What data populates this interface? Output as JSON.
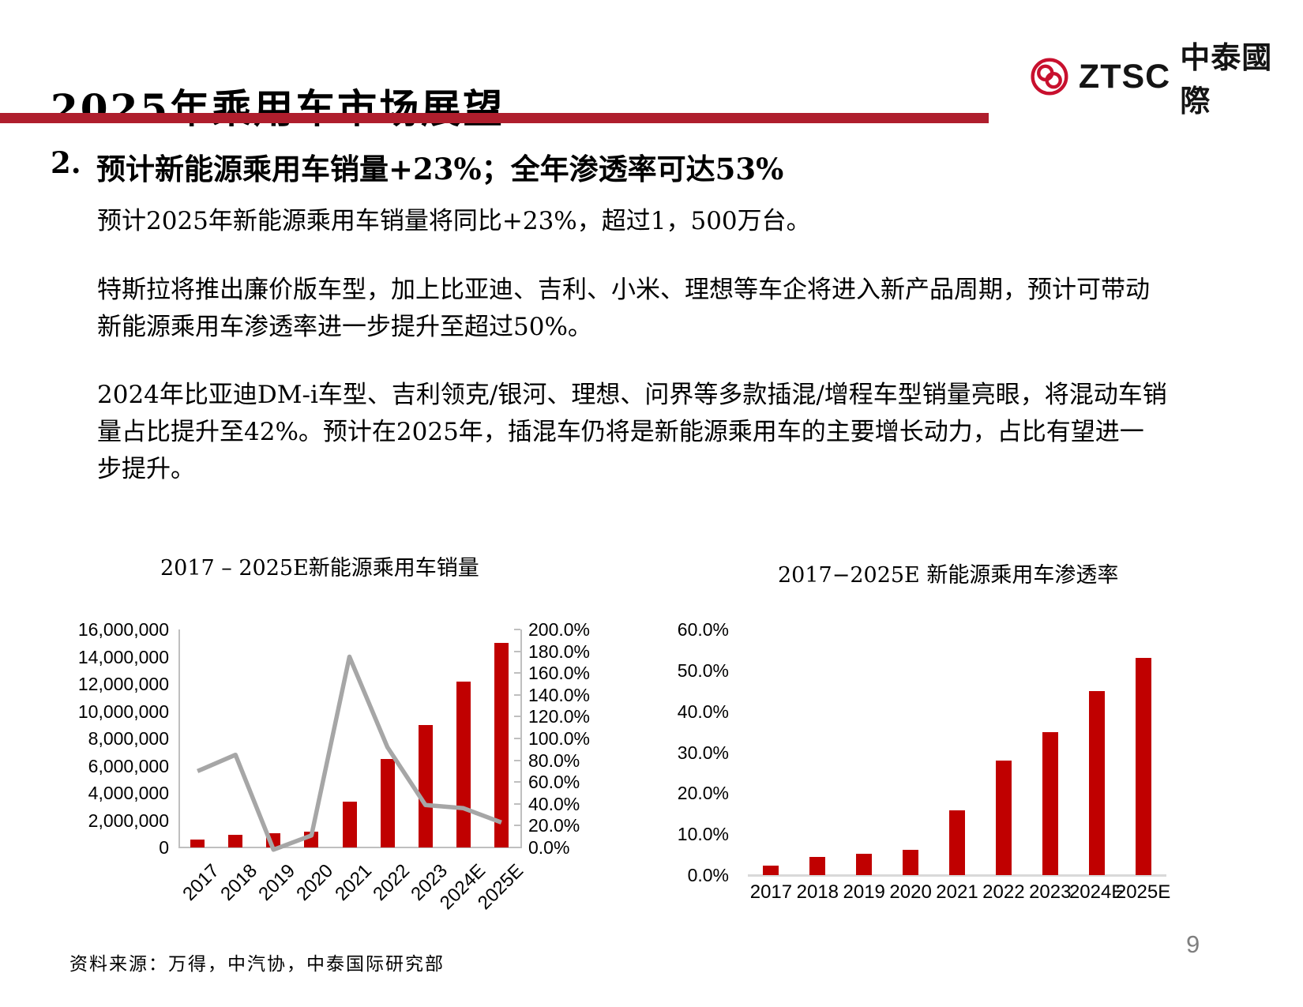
{
  "slide": {
    "title": "2025年乘用车市场展望",
    "page_number": "9",
    "source_note": "资料来源：万得，中汽协，中泰国际研究部"
  },
  "logo": {
    "ticker": "ZTSC",
    "name": "中泰國際"
  },
  "content": {
    "heading_number": "2.",
    "heading": "预计新能源乘用车销量+23%；全年渗透率可达53%",
    "paragraphs": [
      "预计2025年新能源乘用车销量将同比+23%，超过1，500万台。",
      "特斯拉将推出廉价版车型，加上比亚迪、吉利、小米、理想等车企将进入新产品周期，预计可带动新能源乘用车渗透率进一步提升至超过50%。",
      "2024年比亚迪DM-i车型、吉利领克/银河、理想、问界等多款插混/增程车型销量亮眼，将混动车销量占比提升至42%。预计在2025年，插混车仍将是新能源乘用车的主要增长动力，占比有望进一步提升。"
    ]
  },
  "colors": {
    "bar_red": "#C00000",
    "divider_red": "#AF1E2D",
    "logo_red": "#C8102E",
    "line_gray": "#A6A6A6",
    "axis_gray": "#BFBFBF",
    "baseline_gray": "#D9D9D9",
    "page_number_gray": "#7F7F7F"
  },
  "chart_data": [
    {
      "type": "bar+line",
      "title": "2017 – 2025E新能源乘用车销量",
      "categories": [
        "2017",
        "2018",
        "2019",
        "2020",
        "2021",
        "2022",
        "2023",
        "2024E",
        "2025E"
      ],
      "series": [
        {
          "type": "bar",
          "axis": "left",
          "values": [
            580000,
            950000,
            1050000,
            1170000,
            3350000,
            6500000,
            9000000,
            12150000,
            15000000
          ]
        },
        {
          "type": "line",
          "axis": "right",
          "values": [
            70,
            85,
            -2,
            11,
            175,
            92,
            39,
            36,
            23
          ]
        }
      ],
      "axes": {
        "left": {
          "min": 0,
          "max": 16000000,
          "step": 2000000,
          "tick_labels": [
            "16,000,000",
            "14,000,000",
            "12,000,000",
            "10,000,000",
            "8,000,000",
            "6,000,000",
            "4,000,000",
            "2,000,000",
            "0"
          ]
        },
        "right": {
          "min": 0,
          "max": 200,
          "step": 20,
          "unit": "%",
          "tick_labels": [
            "200.0%",
            "180.0%",
            "160.0%",
            "140.0%",
            "120.0%",
            "100.0%",
            "80.0%",
            "60.0%",
            "40.0%",
            "20.0%",
            "0.0%"
          ]
        }
      },
      "legend": "none",
      "grid": "off"
    },
    {
      "type": "bar",
      "title": "2017−2025E 新能源乘用车渗透率",
      "categories": [
        "2017",
        "2018",
        "2019",
        "2020",
        "2021",
        "2022",
        "2023",
        "2024E",
        "2025E"
      ],
      "values": [
        2.4,
        4.4,
        5.2,
        6.2,
        15.8,
        28.0,
        35.0,
        45.0,
        53.0
      ],
      "unit": "%",
      "y_axis": {
        "min": 0,
        "max": 60,
        "step": 10,
        "tick_labels": [
          "60.0%",
          "50.0%",
          "40.0%",
          "30.0%",
          "20.0%",
          "10.0%",
          "0.0%"
        ]
      },
      "legend": "none",
      "grid": "off"
    }
  ]
}
